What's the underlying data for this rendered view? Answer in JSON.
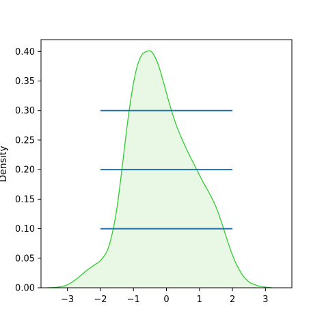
{
  "chart_data": {
    "type": "area",
    "title": "",
    "xlabel": "",
    "ylabel": "Density",
    "xlim": [
      -3.8,
      3.8
    ],
    "ylim": [
      0.0,
      0.42
    ],
    "x_ticks": [
      -3,
      -2,
      -1,
      0,
      1,
      2,
      3
    ],
    "x_tick_labels": [
      "−3",
      "−2",
      "−1",
      "0",
      "1",
      "2",
      "3"
    ],
    "y_ticks": [
      0.0,
      0.05,
      0.1,
      0.15,
      0.2,
      0.25,
      0.3,
      0.35,
      0.4
    ],
    "y_tick_labels": [
      "0.00",
      "0.05",
      "0.10",
      "0.15",
      "0.20",
      "0.25",
      "0.30",
      "0.35",
      "0.40"
    ],
    "grid": false,
    "legend": "none",
    "density": {
      "color": "#2ecc2e",
      "fill": "#e9f8e4",
      "points": [
        [
          -3.6,
          0.0
        ],
        [
          -3.3,
          0.001
        ],
        [
          -3.0,
          0.005
        ],
        [
          -2.7,
          0.016
        ],
        [
          -2.4,
          0.03
        ],
        [
          -2.2,
          0.038
        ],
        [
          -2.0,
          0.046
        ],
        [
          -1.8,
          0.062
        ],
        [
          -1.65,
          0.09
        ],
        [
          -1.5,
          0.135
        ],
        [
          -1.35,
          0.2
        ],
        [
          -1.2,
          0.27
        ],
        [
          -1.05,
          0.33
        ],
        [
          -0.9,
          0.372
        ],
        [
          -0.75,
          0.394
        ],
        [
          -0.6,
          0.4
        ],
        [
          -0.5,
          0.401
        ],
        [
          -0.4,
          0.396
        ],
        [
          -0.25,
          0.378
        ],
        [
          -0.1,
          0.35
        ],
        [
          0.1,
          0.31
        ],
        [
          0.3,
          0.275
        ],
        [
          0.5,
          0.248
        ],
        [
          0.7,
          0.224
        ],
        [
          0.9,
          0.202
        ],
        [
          1.1,
          0.18
        ],
        [
          1.3,
          0.16
        ],
        [
          1.5,
          0.137
        ],
        [
          1.65,
          0.114
        ],
        [
          1.8,
          0.088
        ],
        [
          1.95,
          0.063
        ],
        [
          2.1,
          0.042
        ],
        [
          2.3,
          0.022
        ],
        [
          2.5,
          0.01
        ],
        [
          2.8,
          0.003
        ],
        [
          3.2,
          0.0
        ]
      ]
    },
    "hlines": {
      "color": "#1f6fad",
      "lines": [
        {
          "y": 0.3,
          "xmin": -2.0,
          "xmax": 2.0
        },
        {
          "y": 0.2,
          "xmin": -2.0,
          "xmax": 2.0
        },
        {
          "y": 0.1,
          "xmin": -2.0,
          "xmax": 2.0
        }
      ]
    }
  }
}
